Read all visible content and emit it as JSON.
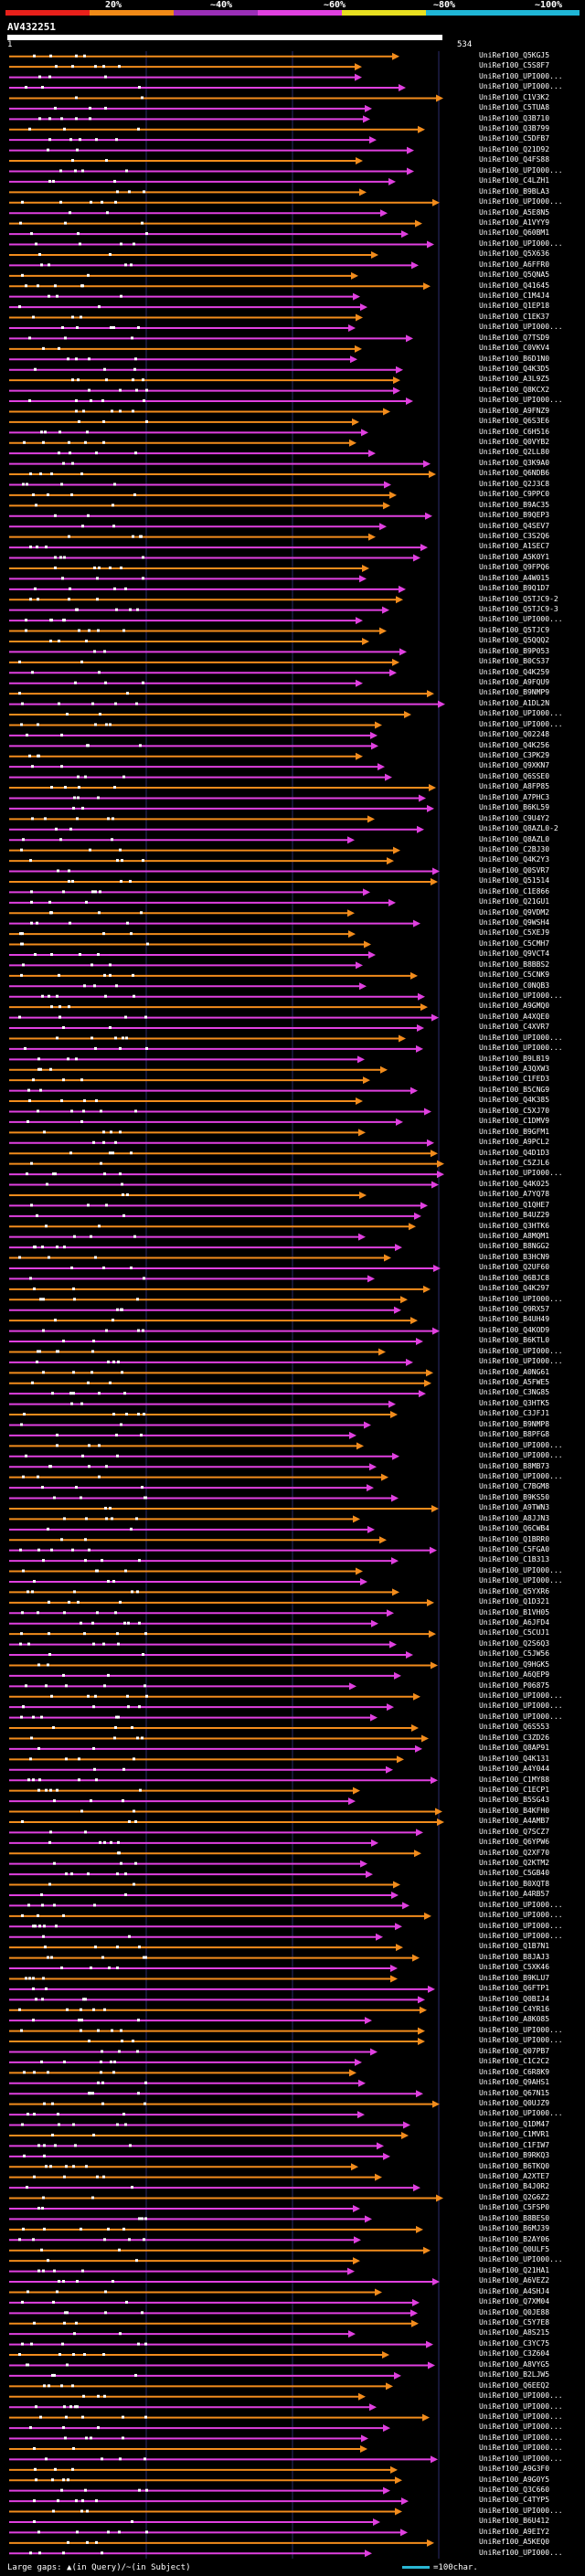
{
  "legend": {
    "marks": [
      "20%",
      "~40%",
      "~60%",
      "~80%",
      "~100%"
    ],
    "colors": [
      "#e8201a",
      "#f08a17",
      "#9a2fb7",
      "#e040e0",
      "#e8e020",
      "#1fb6d6"
    ]
  },
  "query": {
    "name": "AV432251",
    "start": "1",
    "end": "534"
  },
  "hit_colors": {
    "hit_a": "#e040e0",
    "hit_b": "#f28c1c"
  },
  "hits": [
    "UniRef100_Q5KGJ5",
    "UniRef100_C5S8F7",
    "UniRef100_UPI000...",
    "UniRef100_UPI000...",
    "UniRef100_C1V3K2",
    "UniRef100_C5TUA8",
    "UniRef100_Q3B710",
    "UniRef100_Q3B799",
    "UniRef100_C5DFB7",
    "UniRef100_Q21D92",
    "UniRef100_Q4FS88",
    "UniRef100_UPI000...",
    "UniRef100_C4LZH1",
    "UniRef100_B9BLA3",
    "UniRef100_UPI000...",
    "UniRef100_A5E8N5",
    "UniRef100_A1VYY9",
    "UniRef100_Q60BM1",
    "UniRef100_UPI000...",
    "UniRef100_Q5X636",
    "UniRef100_A6FFR0",
    "UniRef100_Q5QNA5",
    "UniRef100_Q41645",
    "UniRef100_C1M4J4",
    "UniRef100_Q1EP18",
    "UniRef100_C1EK37",
    "UniRef100_UPI000...",
    "UniRef100_Q7TSD9",
    "UniRef100_C0VKV4",
    "UniRef100_B6D1N0",
    "UniRef100_Q4K3D5",
    "UniRef100_A3L9Z5",
    "UniRef100_Q8KCX2",
    "UniRef100_UPI000...",
    "UniRef100_A9FNZ9",
    "UniRef100_Q6S3E6",
    "UniRef100_C6H516",
    "UniRef100_Q0VYB2",
    "UniRef100_Q2LL80",
    "UniRef100_Q3K9A0",
    "UniRef100_Q6NDB6",
    "UniRef100_Q2J3C8",
    "UniRef100_C9PPC0",
    "UniRef100_B9AC35",
    "UniRef100_B9QEP3",
    "UniRef100_Q4SEV7",
    "UniRef100_C3S2Q6",
    "UniRef100_A1SEC7",
    "UniRef100_A5K0Y1",
    "UniRef100_Q9FPQ6",
    "UniRef100_A4W015",
    "UniRef100_B9Q1D7",
    "UniRef100_Q5TJC9-2",
    "UniRef100_Q5TJC9-3",
    "UniRef100_UPI000...",
    "UniRef100_Q5TJC9",
    "UniRef100_Q5QQQ2",
    "UniRef100_B9P053",
    "UniRef100_B0CS37",
    "UniRef100_Q4K259",
    "UniRef100_A9FQU9",
    "UniRef100_B9NMP9",
    "UniRef100_A1DL2N",
    "UniRef100_UPI000...",
    "UniRef100_UPI000...",
    "UniRef100_Q02248",
    "UniRef100_Q4K256",
    "UniRef100_C3PK29",
    "UniRef100_Q9XKN7",
    "UniRef100_Q6SSE0",
    "UniRef100_A8FP85",
    "UniRef100_A7PHC3",
    "UniRef100_B6KL59",
    "UniRef100_C9U4Y2",
    "UniRef100_Q8AZL0-2",
    "UniRef100_Q8AZL0",
    "UniRef100_C2BJ30",
    "UniRef100_Q4K2Y3",
    "UniRef100_Q0SVR7",
    "UniRef100_Q51514",
    "UniRef100_C1E866",
    "UniRef100_Q21GU1",
    "UniRef100_Q9VDM2",
    "UniRef100_Q9WSH4",
    "UniRef100_C5XEJ9",
    "UniRef100_C5CMH7",
    "UniRef100_Q9VCT4",
    "UniRef100_B8BBS2",
    "UniRef100_C5CNK9",
    "UniRef100_C0NQB3",
    "UniRef100_UPI000...",
    "UniRef100_A9GMQ0",
    "UniRef100_A4XQE0",
    "UniRef100_C4XVR7",
    "UniRef100_UPI000...",
    "UniRef100_UPI000...",
    "UniRef100_B9LB19",
    "UniRef100_A3QXW3",
    "UniRef100_C1FED3",
    "UniRef100_B5CNG9",
    "UniRef100_Q4K385",
    "UniRef100_C5XJ70",
    "UniRef100_C1DMV9",
    "UniRef100_B9GFM1",
    "UniRef100_A9PCL2",
    "UniRef100_Q4D1D3",
    "UniRef100_C5ZJL6",
    "UniRef100_UPI000...",
    "UniRef100_Q4K025",
    "UniRef100_A7YQ78",
    "UniRef100_Q1QHE7",
    "UniRef100_B4UZ29",
    "UniRef100_Q3HTK6",
    "UniRef100_A8MQM1",
    "UniRef100_B8NGG2",
    "UniRef100_B3HCN9",
    "UniRef100_Q2UF60",
    "UniRef100_Q6BJC8",
    "UniRef100_Q4K297",
    "UniRef100_UPI000...",
    "UniRef100_Q9RX57",
    "UniRef100_B4UH49",
    "UniRef100_Q4KOD9",
    "UniRef100_B6KTL0",
    "UniRef100_UPI000...",
    "UniRef100_UPI000...",
    "UniRef100_A0NG61",
    "UniRef100_A5FWE5",
    "UniRef100_C3NG85",
    "UniRef100_Q3HTK5",
    "UniRef100_C3JFJ1",
    "UniRef100_B9NMP8",
    "UniRef100_B8PFG8",
    "UniRef100_UPI000...",
    "UniRef100_UPI000...",
    "UniRef100_B8MB73",
    "UniRef100_UPI000...",
    "UniRef100_C7BGM8",
    "UniRef100_B9KS50",
    "UniRef100_A9TWN3",
    "UniRef100_A8JJN3",
    "UniRef100_Q6CWB4",
    "UniRef100_Q1BRR0",
    "UniRef100_C5FGA0",
    "UniRef100_C1B313",
    "UniRef100_UPI000...",
    "UniRef100_UPI000...",
    "UniRef100_Q5YXR6",
    "UniRef100_Q1D321",
    "UniRef100_B1VH05",
    "UniRef100_A6JFD4",
    "UniRef100_C5CUJ1",
    "UniRef100_Q2S6Q3",
    "UniRef100_C5JW56",
    "UniRef100_Q9HGK5",
    "UniRef100_A6QEP9",
    "UniRef100_P06875",
    "UniRef100_UPI000...",
    "UniRef100_UPI000...",
    "UniRef100_UPI000...",
    "UniRef100_Q6S553",
    "UniRef100_C3ZD26",
    "UniRef100_Q8AP91",
    "UniRef100_Q4K131",
    "UniRef100_A4Y044",
    "UniRef100_C1MY88",
    "UniRef100_C1ECP1",
    "UniRef100_B5SG43",
    "UniRef100_B4KFH0",
    "UniRef100_A4AMB7",
    "UniRef100_Q7SCZ7",
    "UniRef100_Q6YPW6",
    "UniRef100_Q2XF70",
    "UniRef100_Q2KTM2",
    "UniRef100_C5GB40",
    "UniRef100_B0XQT8",
    "UniRef100_A4RB57",
    "UniRef100_UPI000...",
    "UniRef100_UPI000...",
    "UniRef100_UPI000...",
    "UniRef100_UPI000...",
    "UniRef100_Q1B7N1",
    "UniRef100_B8JAJ3",
    "UniRef100_C5XK46",
    "UniRef100_B9KLU7",
    "UniRef100_Q6FTP1",
    "UniRef100_Q0BIJ4",
    "UniRef100_C4YR16",
    "UniRef100_A8K085",
    "UniRef100_UPI000...",
    "UniRef100_UPI000...",
    "UniRef100_Q07PB7",
    "UniRef100_C1C2C2",
    "UniRef100_C6R8K9",
    "UniRef100_Q9AHS1",
    "UniRef100_Q67N15",
    "UniRef100_Q0UJZ9",
    "UniRef100_UPI000...",
    "UniRef100_Q1DM47",
    "UniRef100_C1MVR1",
    "UniRef100_C1FIW7",
    "UniRef100_B9RKQ3",
    "UniRef100_B6TKQ0",
    "UniRef100_A2XTE7",
    "UniRef100_B4J0R2",
    "UniRef100_Q2G6Z2",
    "UniRef100_C5FSP0",
    "UniRef100_B8BES0",
    "UniRef100_B6MJ39",
    "UniRef100_B2AY06",
    "UniRef100_Q0ULF5",
    "UniRef100_UPI000...",
    "UniRef100_Q21HA1",
    "UniRef100_A6VEZ2",
    "UniRef100_A4SHJ4",
    "UniRef100_Q7XM04",
    "UniRef100_Q0JE88",
    "UniRef100_C5Y7E8",
    "UniRef100_A8S215",
    "UniRef100_C3YC75",
    "UniRef100_C3Z604",
    "UniRef100_A8VYG5",
    "UniRef100_B2LJW5",
    "UniRef100_Q6EEQ2",
    "UniRef100_UPI000...",
    "UniRef100_UPI000...",
    "UniRef100_UPI000...",
    "UniRef100_UPI000...",
    "UniRef100_UPI000...",
    "UniRef100_UPI000...",
    "UniRef100_UPI000...",
    "UniRef100_A9G3F0",
    "UniRef100_A9G0Y5",
    "UniRef100_Q3C660",
    "UniRef100_C4TYP5",
    "UniRef100_UPI000...",
    "UniRef100_B6U412",
    "UniRef100_A9EIY2",
    "UniRef100_A5KEQ0",
    "UniRef100_UPI000..."
  ],
  "footer": {
    "gaps_text": "Large gaps: ▲(in Query)/~(in Subject)",
    "scale_text": "=100char."
  }
}
